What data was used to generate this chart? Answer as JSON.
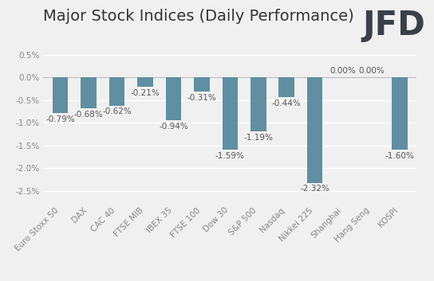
{
  "title": "Major Stock Indices (Daily Performance)",
  "categories": [
    "Euro Stoxx 50",
    "DAX",
    "CAC 40",
    "FTSE MIB",
    "IBEX 35",
    "FTSE 100",
    "Dow 30",
    "S&P 500",
    "Nasdaq",
    "Nikkei 225",
    "Shanghai",
    "Hang Seng",
    "KOSPI"
  ],
  "values": [
    -0.79,
    -0.68,
    -0.62,
    -0.21,
    -0.94,
    -0.31,
    -1.59,
    -1.19,
    -0.44,
    -2.32,
    0.0,
    0.0,
    -1.6
  ],
  "bar_color": "#5f8fa0",
  "ylim": [
    -2.75,
    0.65
  ],
  "yticks": [
    0.5,
    0.0,
    -0.5,
    -1.0,
    -1.5,
    -2.0,
    -2.5
  ],
  "ytick_labels": [
    "0.5%",
    "0.0%",
    "-0.5%",
    "-1.0%",
    "-1.5%",
    "-2.0%",
    "-2.5%"
  ],
  "background_color": "#f0f0f0",
  "title_fontsize": 14,
  "label_fontsize": 7.5,
  "tick_fontsize": 7.5,
  "bar_width": 0.55,
  "logo_text": "JFD",
  "logo_color": "#3a3f4a"
}
